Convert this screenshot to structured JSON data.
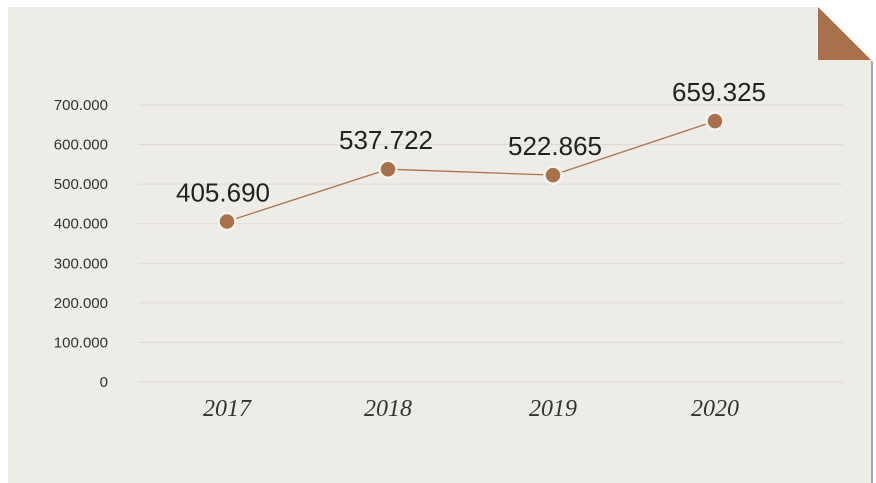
{
  "colors": {
    "background": "#EEECE6",
    "accent": "#A9714B",
    "gridline": "#DCD9D2",
    "shadow": "#9A9890"
  },
  "chart_data": {
    "type": "line",
    "categories": [
      "2017",
      "2018",
      "2019",
      "2020"
    ],
    "values": [
      405690,
      537722,
      522865,
      659325
    ],
    "data_labels": [
      "405.690",
      "537.722",
      "522.865",
      "659.325"
    ],
    "yticks": [
      0,
      100000,
      200000,
      300000,
      400000,
      500000,
      600000,
      700000
    ],
    "ytick_labels": [
      "0",
      "100.000",
      "200.000",
      "300.000",
      "400.000",
      "500.000",
      "600.000",
      "700.000"
    ],
    "ylim": [
      0,
      700000
    ],
    "title": "",
    "xlabel": "",
    "ylabel": "",
    "grid": true,
    "legend": "none"
  }
}
